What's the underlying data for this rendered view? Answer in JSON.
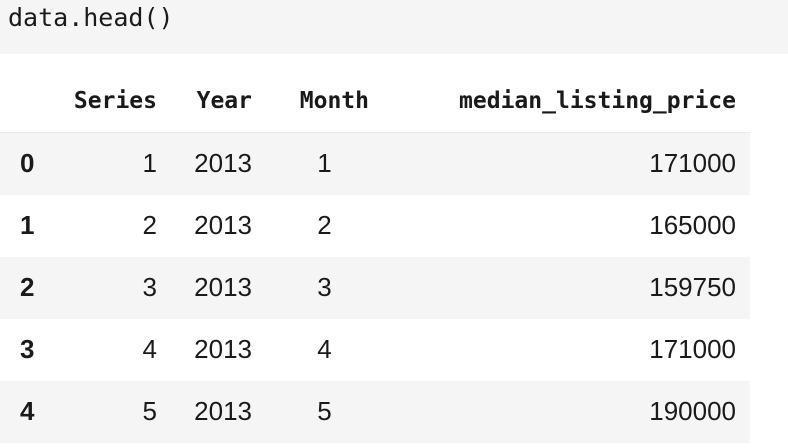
{
  "code_cell": {
    "source": "data.head()"
  },
  "dataframe": {
    "columns": [
      "",
      "Series",
      "Year",
      "Month",
      "median_listing_price"
    ],
    "rows": [
      {
        "index": "0",
        "series": "1",
        "year": "2013",
        "month": "1",
        "median_listing_price": "171000"
      },
      {
        "index": "1",
        "series": "2",
        "year": "2013",
        "month": "2",
        "median_listing_price": "165000"
      },
      {
        "index": "2",
        "series": "3",
        "year": "2013",
        "month": "3",
        "median_listing_price": "159750"
      },
      {
        "index": "3",
        "series": "4",
        "year": "2013",
        "month": "4",
        "median_listing_price": "171000"
      },
      {
        "index": "4",
        "series": "5",
        "year": "2013",
        "month": "5",
        "median_listing_price": "190000"
      }
    ]
  }
}
